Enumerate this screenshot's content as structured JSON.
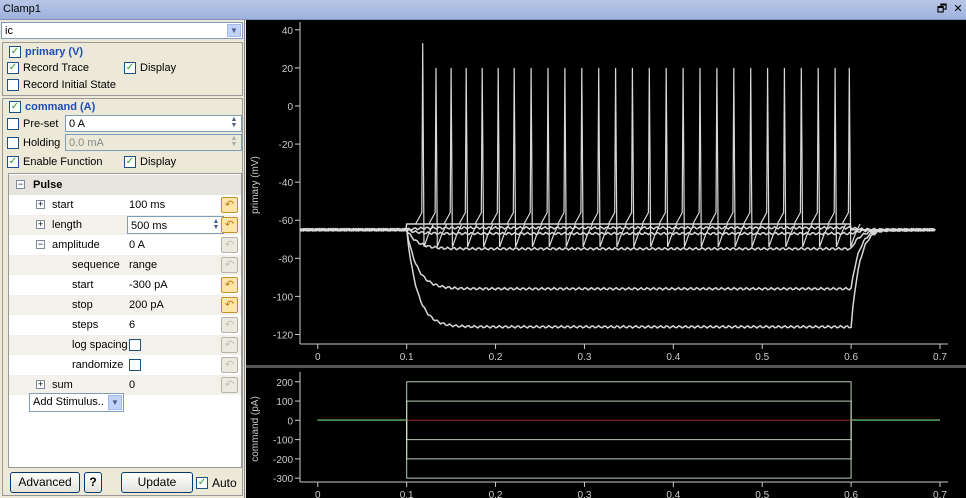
{
  "window": {
    "title": "Clamp1",
    "restore_glyph": "🗗",
    "close_glyph": "✕"
  },
  "mode_select": {
    "value": "ic"
  },
  "primary": {
    "header": "primary (V)",
    "record_trace": "Record Trace",
    "display": "Display",
    "record_initial_state": "Record Initial State"
  },
  "command": {
    "header": "command (A)",
    "preset_label": "Pre-set",
    "preset_value": "0 A",
    "holding_label": "Holding",
    "holding_value": "0.0 mA",
    "enable_function": "Enable Function",
    "display": "Display"
  },
  "tree": {
    "pulse": "Pulse",
    "start": {
      "name": "start",
      "value": "100 ms"
    },
    "length": {
      "name": "length",
      "value": "500 ms"
    },
    "amplitude": {
      "name": "amplitude",
      "value": "0 A"
    },
    "sequence": {
      "name": "sequence",
      "value": "range"
    },
    "amp_start": {
      "name": "start",
      "value": "-300 pA"
    },
    "stop": {
      "name": "stop",
      "value": "200 pA"
    },
    "steps": {
      "name": "steps",
      "value": "6"
    },
    "log_spacing": {
      "name": "log spacing"
    },
    "randomize": {
      "name": "randomize"
    },
    "sum": {
      "name": "sum",
      "value": "0"
    }
  },
  "add_stimulus": "Add Stimulus..",
  "buttons": {
    "advanced": "Advanced",
    "help": "?",
    "update": "Update",
    "auto": "Auto"
  },
  "colors": {
    "trace": "#d8d8d8",
    "command_trace": "#d8f0d8",
    "zero_line": "#2c8c2c",
    "zero_line_red": "#b03030",
    "axis": "#cccccc"
  },
  "chart_data": [
    {
      "type": "line",
      "title": "",
      "xlabel": "",
      "ylabel": "primary (mV)",
      "xlim": [
        -0.02,
        0.7
      ],
      "ylim": [
        -125,
        42
      ],
      "x_ticks": [
        "0",
        "0.1",
        "0.2",
        "0.3",
        "0.4",
        "0.5",
        "0.6",
        "0.7"
      ],
      "y_ticks": [
        "-120",
        "-100",
        "-80",
        "-60",
        "-40",
        "-20",
        "0",
        "20",
        "40"
      ],
      "series": [
        {
          "plateau": -116,
          "baseline": -65
        },
        {
          "plateau": -96,
          "baseline": -65
        },
        {
          "plateau": -75,
          "baseline": -65
        },
        {
          "plateau": -67,
          "baseline": -65
        },
        {
          "plateau": -64,
          "baseline": -65
        },
        {
          "plateau": -62,
          "baseline": -65,
          "spike_times": [
            0.118,
            0.133,
            0.15,
            0.167,
            0.185,
            0.203,
            0.221,
            0.24,
            0.259,
            0.278,
            0.297,
            0.316,
            0.335,
            0.354,
            0.373,
            0.392,
            0.411,
            0.43,
            0.449,
            0.468,
            0.487,
            0.506,
            0.525,
            0.544,
            0.563,
            0.582,
            0.598
          ],
          "first_spike_peak": 33,
          "spike_peak": 20
        }
      ]
    },
    {
      "type": "line",
      "title": "",
      "xlabel": "",
      "ylabel": "command (pA)",
      "xlim": [
        -0.02,
        0.7
      ],
      "ylim": [
        -320,
        230
      ],
      "x_ticks": [
        "0",
        "0.1",
        "0.2",
        "0.3",
        "0.4",
        "0.5",
        "0.6",
        "0.7"
      ],
      "y_ticks": [
        "-300",
        "-200",
        "-100",
        "0",
        "100",
        "200"
      ],
      "series": [
        {
          "values_pA": [
            -300,
            -200,
            -100,
            0,
            100,
            200
          ],
          "pulse_start": 0.1,
          "pulse_end": 0.6
        }
      ]
    }
  ]
}
